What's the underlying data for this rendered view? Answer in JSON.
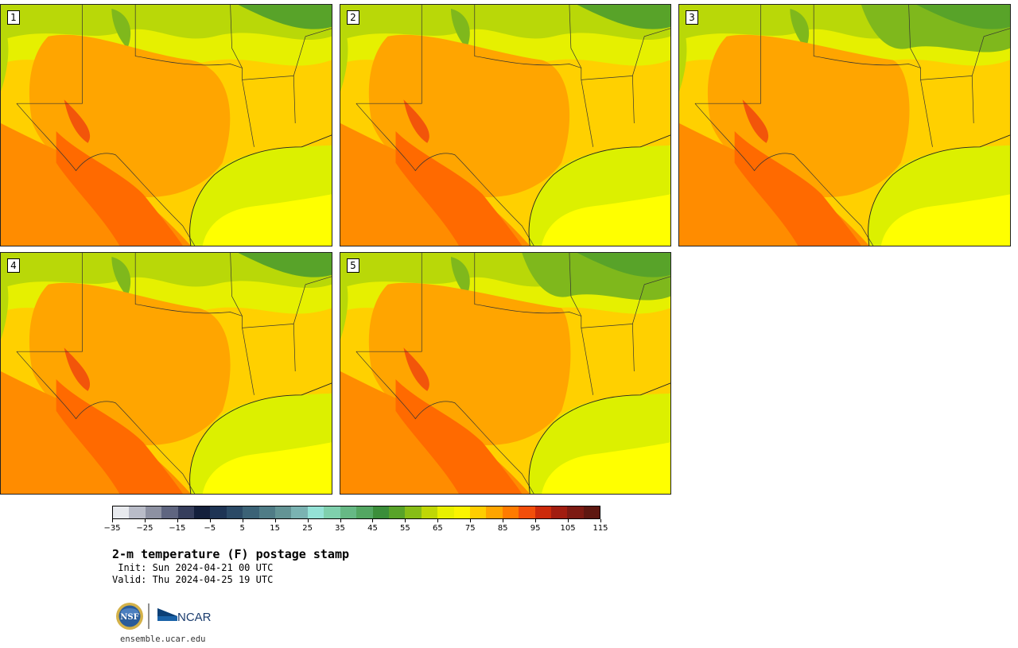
{
  "panels": [
    {
      "label": "1",
      "variant": 0
    },
    {
      "label": "2",
      "variant": 1
    },
    {
      "label": "3",
      "variant": 2
    },
    {
      "label": "4",
      "variant": 3
    },
    {
      "label": "5",
      "variant": 4
    }
  ],
  "colorbar": {
    "colors": [
      "#e8eaee",
      "#b9bcc8",
      "#8d91a2",
      "#5f6580",
      "#363e5c",
      "#14203c",
      "#1e3454",
      "#2b4a66",
      "#3b6276",
      "#4f7c86",
      "#639495",
      "#7ab3b2",
      "#94e2d6",
      "#7fd0ad",
      "#66b985",
      "#53a762",
      "#3b8e3a",
      "#58a329",
      "#87bd17",
      "#bfd706",
      "#e8f000",
      "#fbf400",
      "#ffcd00",
      "#ffa500",
      "#ff7b00",
      "#f24e0a",
      "#cc2a0b",
      "#a11d10",
      "#7c1a12",
      "#5e1710"
    ],
    "tick_values": [
      "−35",
      "−25",
      "−15",
      "−5",
      "5",
      "15",
      "25",
      "35",
      "45",
      "55",
      "65",
      "75",
      "85",
      "95",
      "105",
      "115"
    ]
  },
  "title": "2-m temperature (F) postage stamp",
  "init": " Init: Sun 2024-04-21 00 UTC",
  "valid": "Valid: Thu 2024-04-25 19 UTC",
  "logos": {
    "nsf": "NSF",
    "ncar": "NCAR"
  },
  "site": "ensemble.ucar.edu"
}
